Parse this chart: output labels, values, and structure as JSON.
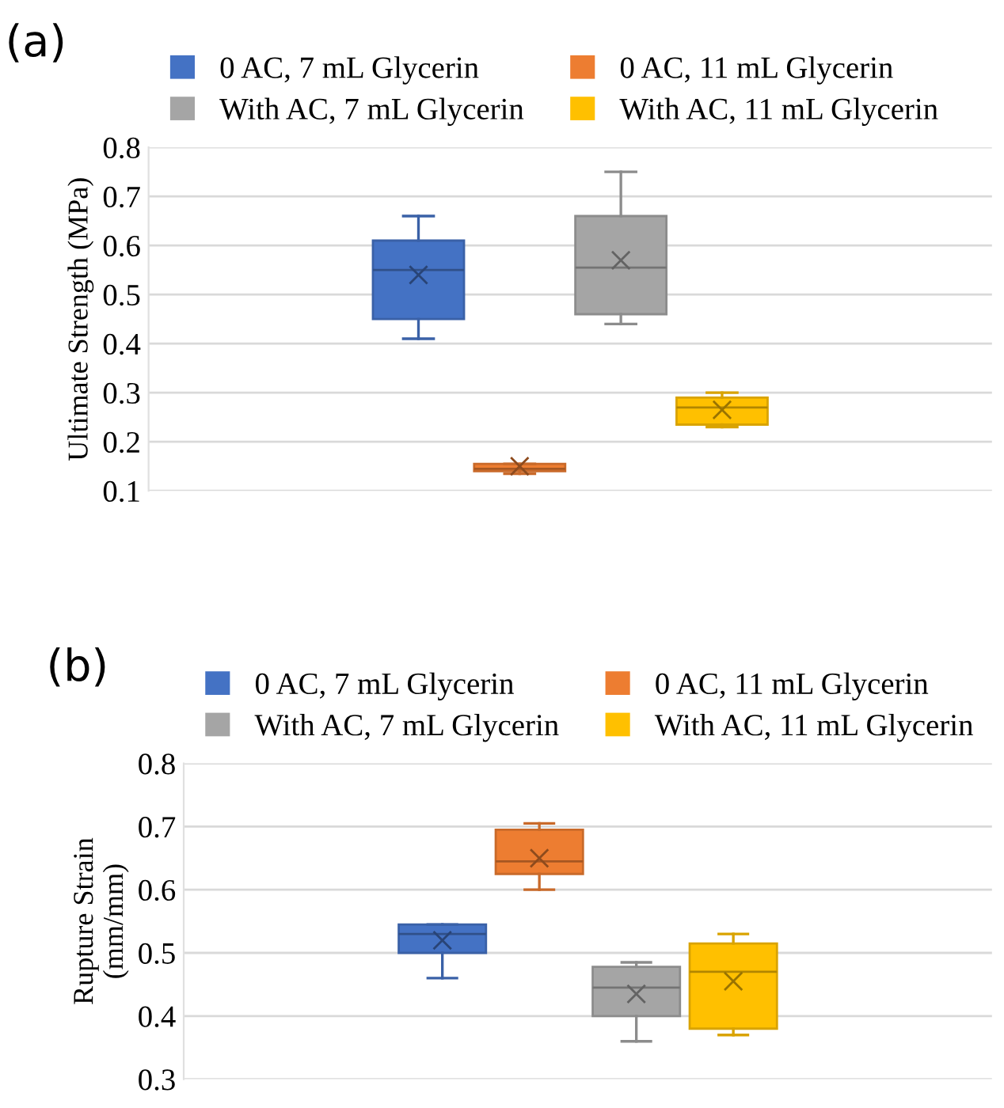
{
  "chart_data": [
    {
      "type": "box",
      "title": "(a)",
      "ylabel": "Ultimate Strength (MPa)",
      "categories": [
        null
      ],
      "ylim": [
        0.1,
        0.8
      ],
      "yticks": [
        0.1,
        0.2,
        0.3,
        0.4,
        0.5,
        0.6,
        0.7,
        0.8
      ],
      "grid": "y",
      "legend": "top",
      "marker": "cross",
      "series": [
        {
          "name": "0 AC, 7 mL Glycerin",
          "color": "#4472c4",
          "boxes": [
            {
              "low": 0.41,
              "q1": 0.45,
              "median": 0.55,
              "q3": 0.61,
              "high": 0.66,
              "mean": 0.54
            }
          ]
        },
        {
          "name": "0 AC, 11 mL Glycerin",
          "color": "#ed7d31",
          "boxes": [
            {
              "low": 0.135,
              "q1": 0.14,
              "median": 0.145,
              "q3": 0.155,
              "high": 0.155,
              "mean": 0.15
            }
          ]
        },
        {
          "name": "With AC, 7 mL Glycerin",
          "color": "#a5a5a5",
          "boxes": [
            {
              "low": 0.44,
              "q1": 0.46,
              "median": 0.555,
              "q3": 0.66,
              "high": 0.75,
              "mean": 0.57
            }
          ]
        },
        {
          "name": "With AC, 11 mL Glycerin",
          "color": "#ffc000",
          "boxes": [
            {
              "low": 0.23,
              "q1": 0.235,
              "median": 0.27,
              "q3": 0.29,
              "high": 0.3,
              "mean": 0.265
            }
          ]
        }
      ]
    },
    {
      "type": "box",
      "title": "(b)",
      "ylabel": "Rupture Strain\n(mm/mm)",
      "categories": [
        null
      ],
      "ylim": [
        0.3,
        0.8
      ],
      "yticks": [
        0.3,
        0.4,
        0.5,
        0.6,
        0.7,
        0.8
      ],
      "grid": "y",
      "legend": "top",
      "marker": "cross",
      "series": [
        {
          "name": "0 AC, 7 mL Glycerin",
          "color": "#4472c4",
          "boxes": [
            {
              "low": 0.46,
              "q1": 0.5,
              "median": 0.53,
              "q3": 0.545,
              "high": 0.545,
              "mean": 0.52
            }
          ]
        },
        {
          "name": "0 AC, 11 mL Glycerin",
          "color": "#ed7d31",
          "boxes": [
            {
              "low": 0.6,
              "q1": 0.625,
              "median": 0.645,
              "q3": 0.695,
              "high": 0.705,
              "mean": 0.65
            }
          ]
        },
        {
          "name": "With AC, 7 mL Glycerin",
          "color": "#a5a5a5",
          "boxes": [
            {
              "low": 0.36,
              "q1": 0.4,
              "median": 0.445,
              "q3": 0.478,
              "high": 0.485,
              "mean": 0.435
            }
          ]
        },
        {
          "name": "With AC, 11 mL Glycerin",
          "color": "#ffc000",
          "boxes": [
            {
              "low": 0.37,
              "q1": 0.38,
              "median": 0.47,
              "q3": 0.515,
              "high": 0.53,
              "mean": 0.455
            }
          ]
        }
      ]
    }
  ]
}
